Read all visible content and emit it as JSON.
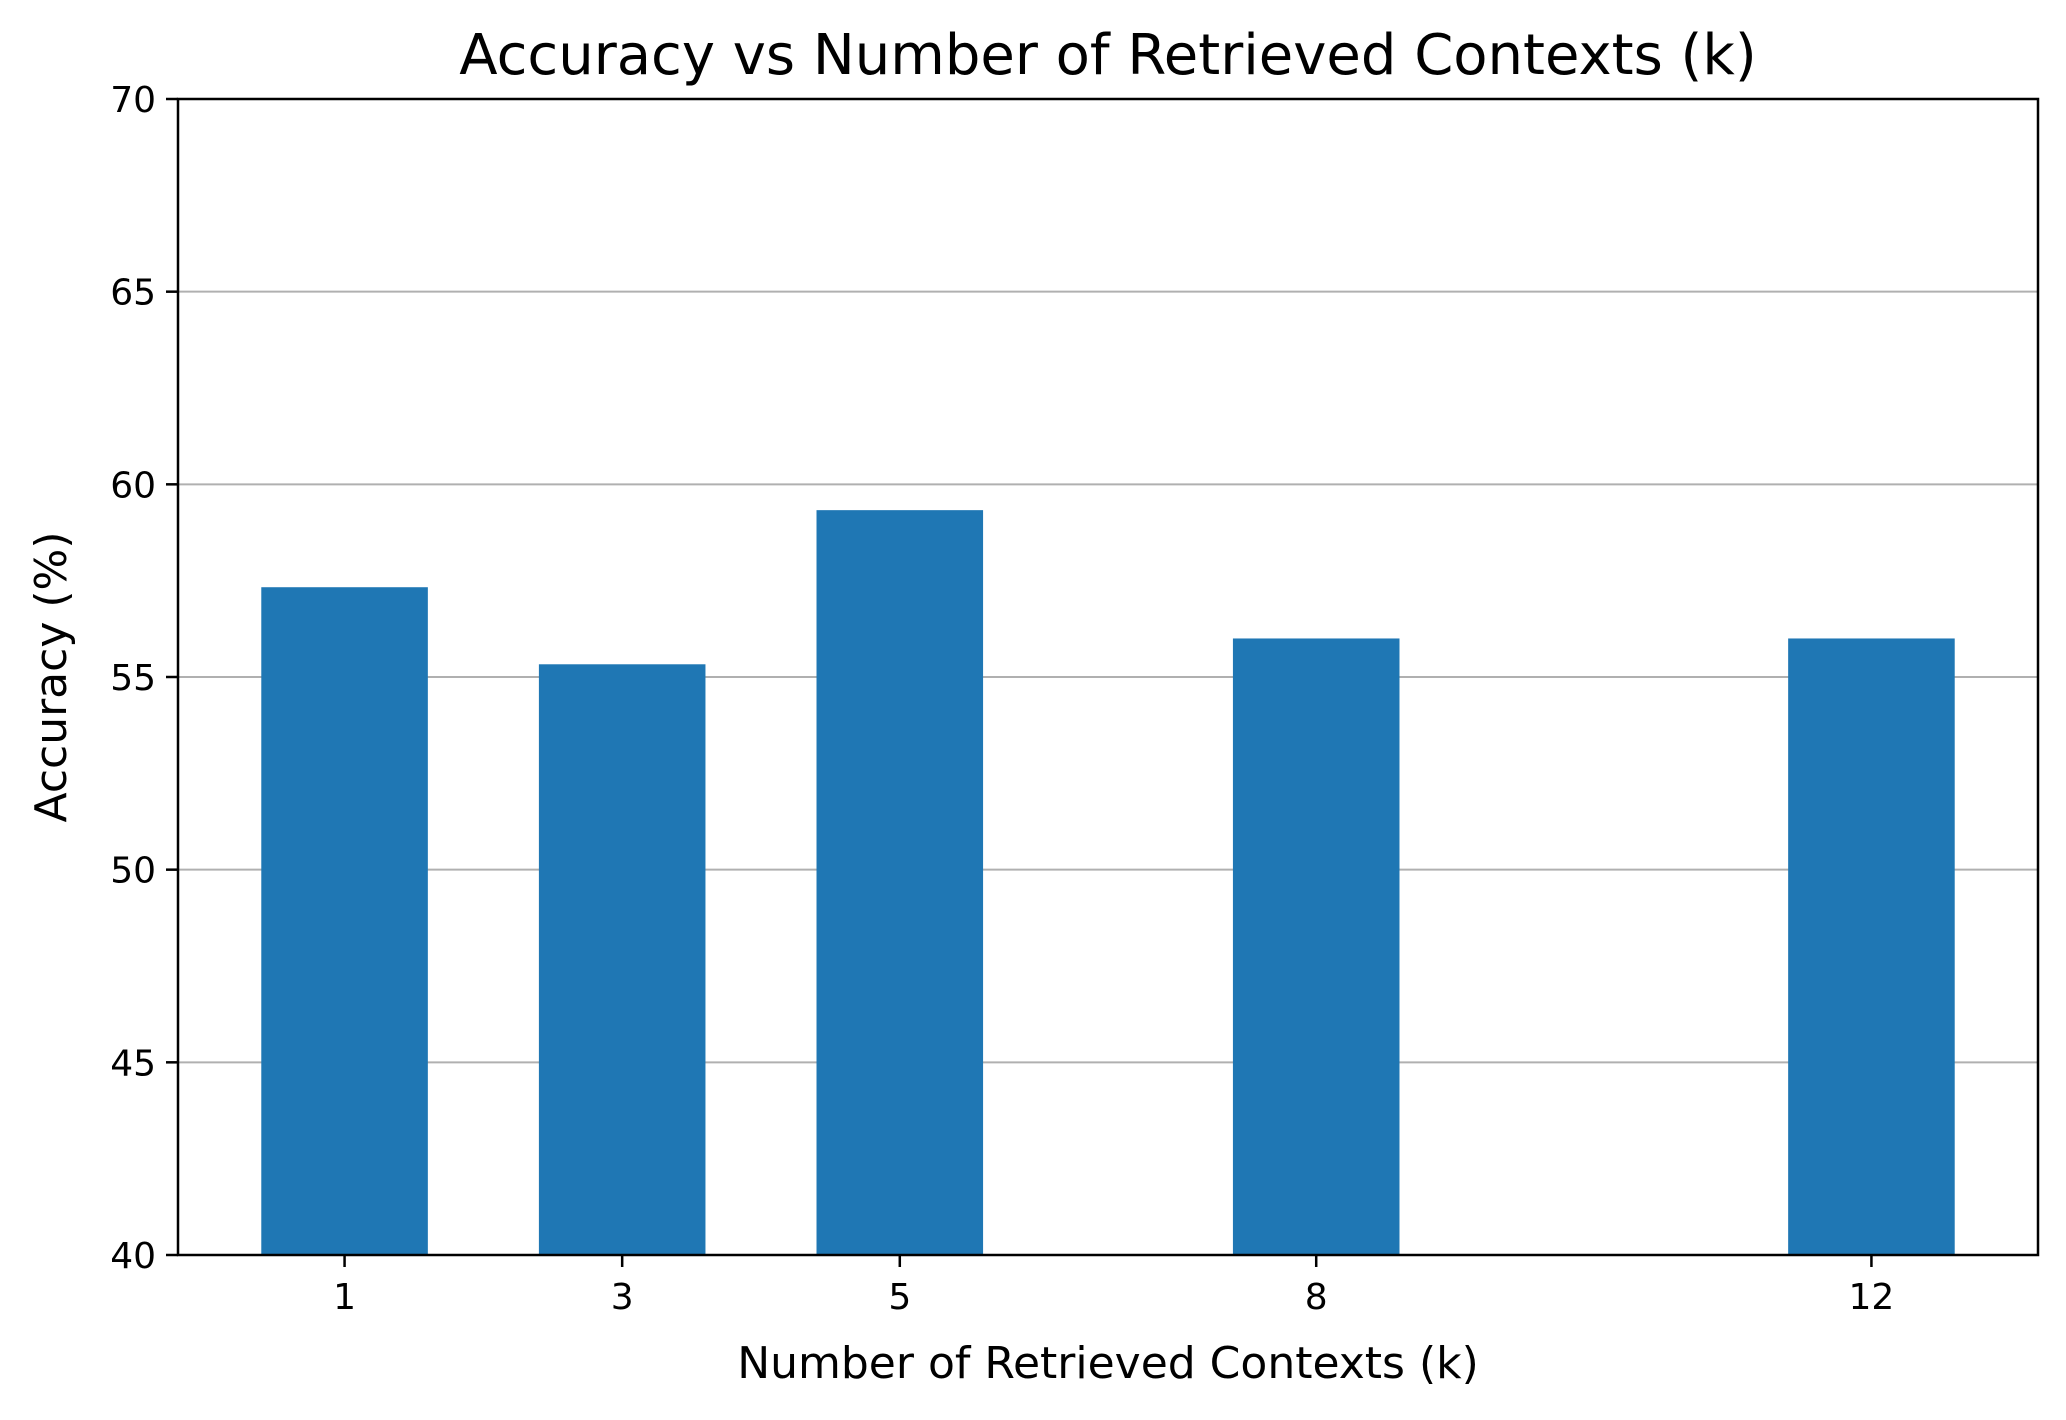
{
  "chart_data": {
    "type": "bar",
    "title": "Accuracy vs Number of Retrieved Contexts (k)",
    "xlabel": "Number of Retrieved Contexts (k)",
    "ylabel": "Accuracy (%)",
    "x": [
      1,
      3,
      5,
      8,
      12
    ],
    "tick_labels": [
      "1",
      "3",
      "5",
      "8",
      "12"
    ],
    "values": [
      57.33,
      55.33,
      59.33,
      56.0,
      56.0
    ],
    "ylim": [
      40,
      70
    ],
    "xlim": [
      -0.2,
      13.2
    ],
    "bar_width": 1.2,
    "yticks": [
      40,
      45,
      50,
      55,
      60,
      65,
      70
    ],
    "ytick_labels": [
      "40",
      "45",
      "50",
      "55",
      "60",
      "65",
      "70"
    ],
    "grid": "y",
    "legend": "none",
    "bar_color": "#1f77b4",
    "grid_color": "#b0b0b0"
  }
}
